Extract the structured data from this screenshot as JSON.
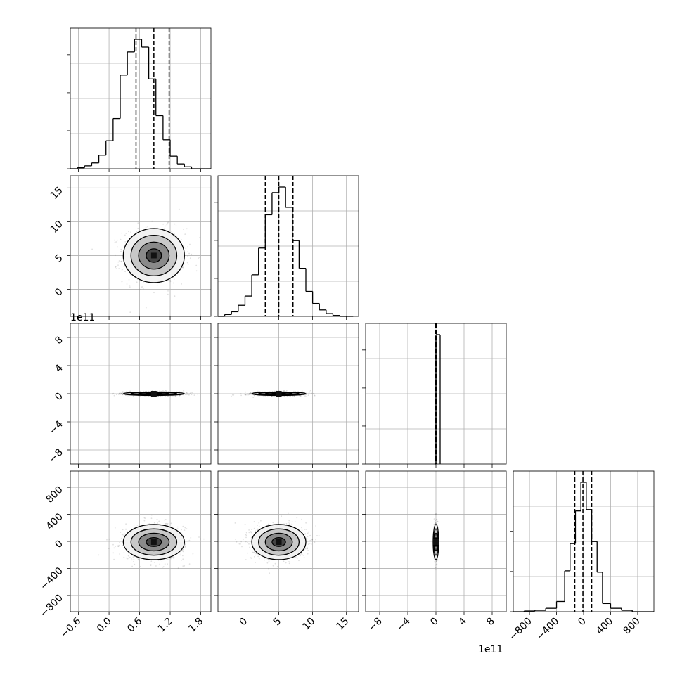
{
  "chart_data": {
    "type": "corner",
    "grid": true,
    "offset_text": "1e11",
    "quantiles_shown": [
      0.16,
      0.5,
      0.84
    ],
    "parameters": [
      {
        "id": "p0",
        "mean": 0.88,
        "std": 0.3,
        "range": [
          -0.76,
          2.0
        ],
        "ticks": [
          -0.6,
          0.0,
          0.6,
          1.2,
          1.8
        ],
        "tick_labels": [
          "−0.6",
          "0.0",
          "0.6",
          "1.2",
          "1.8"
        ],
        "quantiles": [
          0.53,
          0.88,
          1.18
        ],
        "scale": "1"
      },
      {
        "id": "p1",
        "mean": 5.0,
        "std": 2.0,
        "range": [
          -4.0,
          16.8
        ],
        "ticks": [
          0,
          5,
          10,
          15
        ],
        "tick_labels": [
          "0",
          "5",
          "10",
          "15"
        ],
        "quantiles": [
          3.0,
          5.0,
          7.1
        ],
        "scale": "1"
      },
      {
        "id": "p2",
        "mean": 0.0,
        "std": 0.04,
        "range": [
          -10.0,
          10.0
        ],
        "ticks": [
          -8,
          -4,
          0,
          4,
          8
        ],
        "tick_labels": [
          "−8",
          "−4",
          "0",
          "4",
          "8"
        ],
        "quantiles": [
          -0.03,
          0.0,
          0.04
        ],
        "scale": "1e11"
      },
      {
        "id": "p3",
        "mean": -10,
        "std": 130,
        "range": [
          -1040,
          1040
        ],
        "ticks": [
          -800,
          -400,
          0,
          400,
          800
        ],
        "tick_labels": [
          "−800",
          "−400",
          "0",
          "400",
          "800"
        ],
        "quantiles": [
          -130,
          -10,
          120
        ],
        "scale": "1"
      }
    ],
    "histograms": [
      {
        "param": "p0",
        "bin_edges": [
          -0.76,
          -0.62,
          -0.48,
          -0.34,
          -0.2,
          -0.06,
          0.08,
          0.22,
          0.36,
          0.5,
          0.64,
          0.78,
          0.92,
          1.06,
          1.2,
          1.34,
          1.48,
          1.62,
          1.76,
          1.9,
          2.0
        ],
        "counts": [
          0,
          1,
          3,
          6,
          14,
          29,
          52,
          97,
          121,
          134,
          126,
          93,
          55,
          30,
          13,
          5,
          2,
          0,
          0,
          0
        ]
      },
      {
        "param": "p1",
        "bin_edges": [
          -4.0,
          -3.0,
          -2.0,
          -1.0,
          0.0,
          1.0,
          2.0,
          3.0,
          4.0,
          5.0,
          6.0,
          7.0,
          8.0,
          9.0,
          10.0,
          11.0,
          12.0,
          13.0,
          14.0,
          15.0,
          16.0
        ],
        "counts": [
          0,
          2,
          5,
          12,
          22,
          45,
          74,
          110,
          134,
          140,
          118,
          82,
          52,
          27,
          14,
          7,
          3,
          1,
          0,
          0
        ]
      },
      {
        "param": "p2",
        "bin_edges": [
          -0.2,
          0.0,
          0.6
        ],
        "counts": [
          0,
          1
        ]
      },
      {
        "param": "p3",
        "bin_edges": [
          -1040,
          -880,
          -720,
          -560,
          -400,
          -280,
          -200,
          -120,
          -40,
          40,
          120,
          200,
          280,
          400,
          560,
          720,
          880,
          1040
        ],
        "counts": [
          0,
          1,
          2,
          5,
          15,
          60,
          100,
          148,
          190,
          150,
          103,
          58,
          12,
          5,
          2,
          0,
          0
        ]
      }
    ],
    "pairs": [
      {
        "x": "p0",
        "y": "p1"
      },
      {
        "x": "p0",
        "y": "p2"
      },
      {
        "x": "p1",
        "y": "p2"
      },
      {
        "x": "p0",
        "y": "p3"
      },
      {
        "x": "p1",
        "y": "p3"
      },
      {
        "x": "p2",
        "y": "p3"
      }
    ]
  }
}
